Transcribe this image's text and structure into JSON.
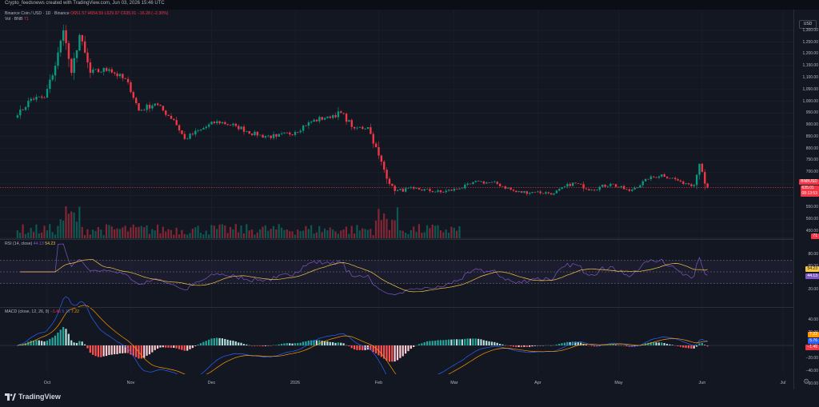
{
  "header": {
    "credit": "Crypto_feedsnews created with TradingView.com, Jun 03, 2026 15:46 UTC"
  },
  "legend": {
    "symbol": "Binance Coin / USD · 1D · Binance",
    "ohlc": "O651.57 H654.59 L629.97 C635.01 −16.28 (−2.30%)",
    "vol_label": "Vol · BNB",
    "vol_value": "71",
    "rsi_label": "RSI (14, close)",
    "rsi_value": "44.13",
    "rsi_ma_value": "54.23",
    "macd_label": "MACD (close, 12, 26, 9)",
    "macd_hist": "−1.46",
    "macd_line": "5.76",
    "macd_signal": "7.22"
  },
  "price_axis": {
    "currency": "USD",
    "ticks": [
      "1,300.00",
      "1,250.00",
      "1,200.00",
      "1,150.00",
      "1,100.00",
      "1,050.00",
      "1,000.00",
      "950.00",
      "900.00",
      "850.00",
      "800.00",
      "750.00",
      "700.00",
      "650.00",
      "600.00",
      "550.00",
      "500.00",
      "450.00"
    ],
    "last_price_symbol": "BNBUSD",
    "last_price": "635.01",
    "countdown": "08:13:53",
    "vol_badge": "71"
  },
  "rsi_axis": {
    "ticks": [
      "80.00",
      "60.00",
      "40.00",
      "20.00"
    ],
    "ma_badge": "54.23",
    "rsi_badge": "44.13"
  },
  "macd_axis": {
    "ticks": [
      "40.00",
      "20.00",
      "0.00",
      "−20.00",
      "−40.00",
      "−60.00"
    ],
    "signal_badge": "7.22",
    "line_badge": "5.76",
    "hist_badge": "−1.46"
  },
  "time_axis": {
    "labels": [
      "Oct",
      "Nov",
      "Dec",
      "2026",
      "Feb",
      "Mar",
      "Apr",
      "May",
      "Jun",
      "Jul"
    ]
  },
  "brand": "TradingView",
  "colors": {
    "up": "#089981",
    "down": "#f23645",
    "rsi": "#7e57c2",
    "rsi_ma": "#f7c548",
    "macd_line": "#2962ff",
    "macd_signal": "#ff9800",
    "background": "#131722"
  },
  "chart_data": {
    "type": "candlestick",
    "symbol": "BNBUSD",
    "interval": "1D",
    "ylim": [
      450,
      1320
    ],
    "anchors": [
      {
        "date": "2025-09-20",
        "close": 940
      },
      {
        "date": "2025-09-25",
        "close": 1010
      },
      {
        "date": "2025-09-30",
        "close": 1015
      },
      {
        "date": "2025-10-04",
        "close": 1150
      },
      {
        "date": "2025-10-07",
        "close": 1300
      },
      {
        "date": "2025-10-10",
        "close": 1120
      },
      {
        "date": "2025-10-13",
        "close": 1280
      },
      {
        "date": "2025-10-17",
        "close": 1120
      },
      {
        "date": "2025-10-24",
        "close": 1135
      },
      {
        "date": "2025-10-31",
        "close": 1080
      },
      {
        "date": "2025-11-04",
        "close": 960
      },
      {
        "date": "2025-11-10",
        "close": 990
      },
      {
        "date": "2025-11-17",
        "close": 920
      },
      {
        "date": "2025-11-21",
        "close": 840
      },
      {
        "date": "2025-11-27",
        "close": 880
      },
      {
        "date": "2025-12-03",
        "close": 915
      },
      {
        "date": "2025-12-10",
        "close": 895
      },
      {
        "date": "2025-12-18",
        "close": 855
      },
      {
        "date": "2025-12-25",
        "close": 850
      },
      {
        "date": "2026-01-01",
        "close": 870
      },
      {
        "date": "2026-01-06",
        "close": 910
      },
      {
        "date": "2026-01-13",
        "close": 935
      },
      {
        "date": "2026-01-18",
        "close": 950
      },
      {
        "date": "2026-01-23",
        "close": 885
      },
      {
        "date": "2026-01-28",
        "close": 890
      },
      {
        "date": "2026-02-01",
        "close": 770
      },
      {
        "date": "2026-02-05",
        "close": 650
      },
      {
        "date": "2026-02-07",
        "close": 620
      },
      {
        "date": "2026-02-14",
        "close": 630
      },
      {
        "date": "2026-02-24",
        "close": 615
      },
      {
        "date": "2026-03-03",
        "close": 630
      },
      {
        "date": "2026-03-10",
        "close": 660
      },
      {
        "date": "2026-03-17",
        "close": 650
      },
      {
        "date": "2026-03-24",
        "close": 615
      },
      {
        "date": "2026-03-31",
        "close": 615
      },
      {
        "date": "2026-04-07",
        "close": 610
      },
      {
        "date": "2026-04-14",
        "close": 655
      },
      {
        "date": "2026-04-21",
        "close": 625
      },
      {
        "date": "2026-04-28",
        "close": 650
      },
      {
        "date": "2026-05-05",
        "close": 620
      },
      {
        "date": "2026-05-12",
        "close": 670
      },
      {
        "date": "2026-05-17",
        "close": 690
      },
      {
        "date": "2026-05-24",
        "close": 660
      },
      {
        "date": "2026-05-29",
        "close": 645
      },
      {
        "date": "2026-05-31",
        "close": 735
      },
      {
        "date": "2026-06-01",
        "close": 700
      },
      {
        "date": "2026-06-02",
        "close": 651
      },
      {
        "date": "2026-06-03",
        "close": 635
      }
    ],
    "last": {
      "open": 651.57,
      "high": 654.59,
      "low": 629.97,
      "close": 635.01,
      "change": -16.28,
      "change_pct": -2.3
    },
    "rsi": {
      "range": [
        0,
        100
      ],
      "bands": [
        70,
        30
      ],
      "value": 44.13,
      "ma": 54.23
    },
    "macd": {
      "range": [
        -60,
        50
      ],
      "histogram": -1.46,
      "macd": 5.76,
      "signal": 7.22
    },
    "volume_last": 71
  }
}
